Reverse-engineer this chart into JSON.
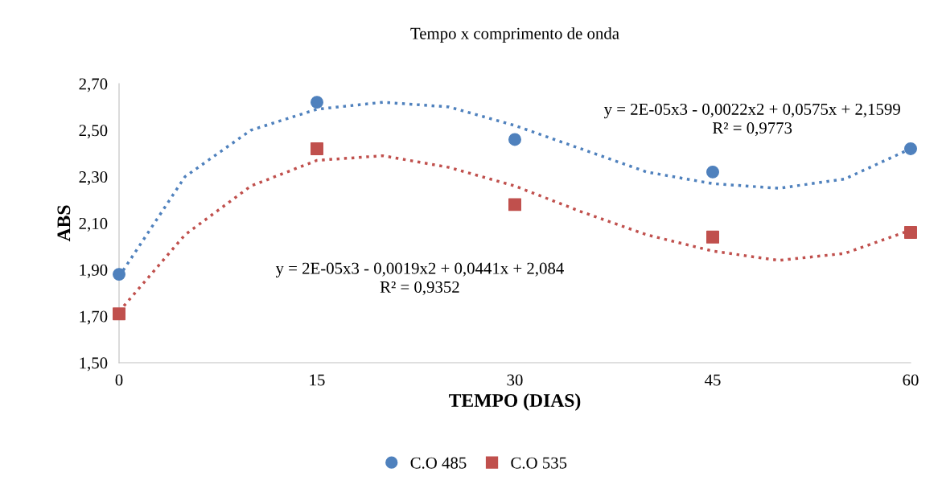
{
  "chart_data": {
    "type": "scatter",
    "title": "Tempo x comprimento de onda",
    "xlabel": "TEMPO (DIAS)",
    "ylabel": "ABS",
    "x": [
      0,
      15,
      30,
      45,
      60
    ],
    "series": [
      {
        "name": "C.O 485",
        "color": "#4f81bd",
        "marker": "circle",
        "values": [
          1.88,
          2.62,
          2.46,
          2.32,
          2.42
        ]
      },
      {
        "name": "C.O 535",
        "color": "#c0504d",
        "marker": "square",
        "values": [
          1.71,
          2.42,
          2.18,
          2.04,
          2.06
        ]
      },
      {
        "type": "line",
        "color": "#4f81bd",
        "line_style": "dotted",
        "marker": "none",
        "x": [
          0,
          5,
          10,
          15,
          20,
          25,
          30,
          35,
          40,
          45,
          50,
          55,
          60
        ],
        "values": [
          1.87,
          2.3,
          2.5,
          2.59,
          2.62,
          2.6,
          2.52,
          2.42,
          2.32,
          2.27,
          2.25,
          2.29,
          2.42
        ]
      },
      {
        "type": "line",
        "color": "#c0504d",
        "line_style": "dotted",
        "marker": "none",
        "x": [
          0,
          5,
          10,
          15,
          20,
          25,
          30,
          35,
          40,
          45,
          50,
          55,
          60
        ],
        "values": [
          1.72,
          2.05,
          2.26,
          2.37,
          2.39,
          2.34,
          2.26,
          2.15,
          2.05,
          1.98,
          1.94,
          1.97,
          2.07
        ]
      }
    ],
    "annotations": [
      "y = 2E-05x3 - 0,0022x2 + 0,0575x + 2,1599\nR² = 0,9773",
      "y = 2E-05x3 - 0,0019x2 + 0,0441x + 2,084\nR² = 0,9352"
    ],
    "xlim": [
      0,
      60
    ],
    "xticks": [
      0,
      15,
      30,
      45,
      60
    ],
    "ylim": [
      1.5,
      2.7
    ],
    "yticks": [
      {
        "value": 1.5,
        "label": "1,50"
      },
      {
        "value": 1.7,
        "label": "1,70"
      },
      {
        "value": 1.9,
        "label": "1,90"
      },
      {
        "value": 2.1,
        "label": "2,10"
      },
      {
        "value": 2.3,
        "label": "2,30"
      },
      {
        "value": 2.5,
        "label": "2,50"
      },
      {
        "value": 2.7,
        "label": "2,70"
      }
    ],
    "grid": false,
    "legend": "bottom"
  }
}
